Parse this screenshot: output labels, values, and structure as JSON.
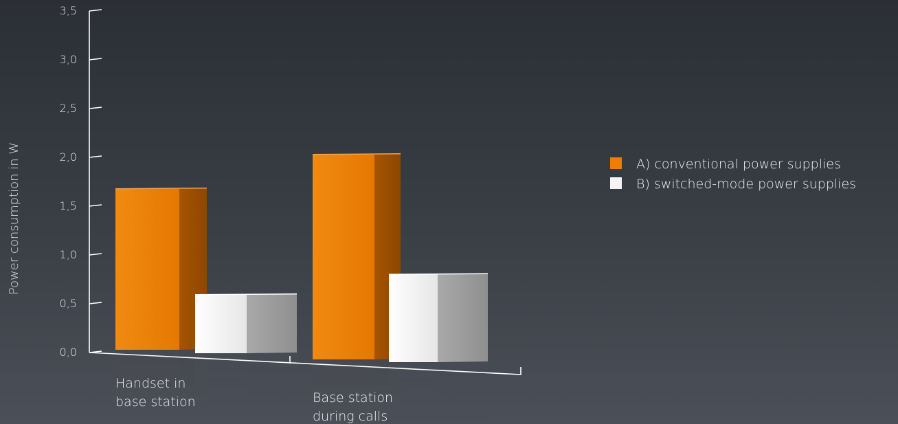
{
  "chart_data": {
    "type": "bar",
    "style": "3d",
    "ylabel": "Power consumption in W",
    "ylim": [
      0,
      3.5
    ],
    "yticks": [
      "0,0",
      "0,5",
      "1,0",
      "1,5",
      "2,0",
      "2,5",
      "3,0",
      "3,5"
    ],
    "categories": [
      {
        "lines": [
          "Handset in",
          "base station"
        ]
      },
      {
        "lines": [
          "Base station",
          "during calls"
        ]
      }
    ],
    "series": [
      {
        "name": "A) conventional power supplies",
        "color": "#ee7d00",
        "values": [
          1.65,
          2.1
        ]
      },
      {
        "name": "B) switched-mode power supplies",
        "color": "#f4f4f4",
        "values": [
          0.6,
          0.9
        ]
      }
    ],
    "legend_position": "right"
  }
}
